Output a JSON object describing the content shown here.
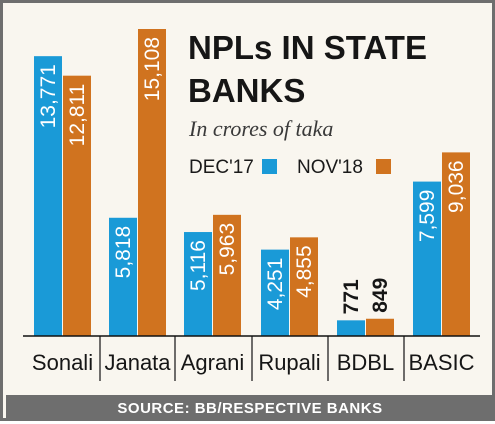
{
  "chart_data": {
    "type": "bar",
    "title_lines": [
      "NPLs IN STATE",
      "BANKS"
    ],
    "subtitle": "In crores of taka",
    "categories": [
      "Sonali",
      "Janata",
      "Agrani",
      "Rupali",
      "BDBL",
      "BASIC"
    ],
    "series": [
      {
        "name": "DEC'17",
        "color": "#1a9ad7",
        "values": [
          13771,
          5818,
          5116,
          4251,
          771,
          7599
        ]
      },
      {
        "name": "NOV'18",
        "color": "#d0731f",
        "values": [
          12811,
          15108,
          5963,
          4855,
          849,
          9036
        ]
      }
    ],
    "value_labels": [
      [
        "13,771",
        "5,818",
        "5,116",
        "4,251",
        "771",
        "7,599"
      ],
      [
        "12,811",
        "15,108",
        "5,963",
        "4,855",
        "849",
        "9,036"
      ]
    ],
    "ylim": [
      0,
      15108
    ],
    "grid": false,
    "legend_position": "top-right",
    "source": "SOURCE: BB/RESPECTIVE BANKS"
  }
}
